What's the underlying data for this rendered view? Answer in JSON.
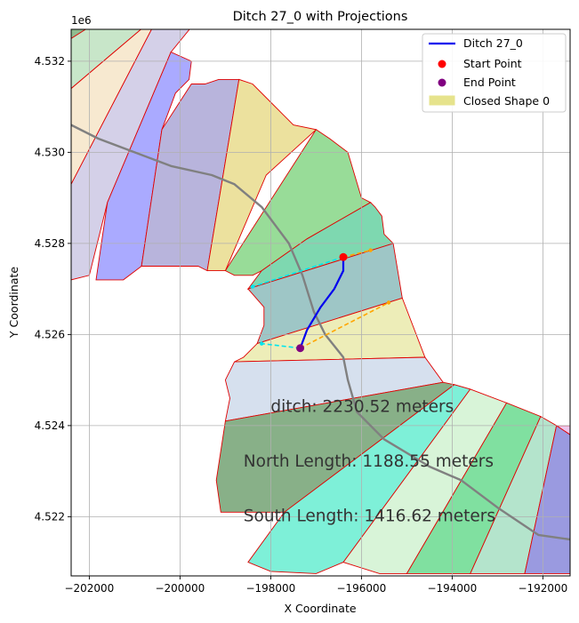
{
  "chart_data": {
    "type": "map-plot",
    "title": "Ditch 27_0 with Projections",
    "xlabel": "X Coordinate",
    "ylabel": "Y Coordinate",
    "y_offset_label": "1e6",
    "xlim": [
      -202400,
      -191400
    ],
    "ylim": [
      4520700,
      4532700
    ],
    "x_ticks": [
      -202000,
      -200000,
      -198000,
      -196000,
      -194000,
      -192000
    ],
    "x_tick_labels": [
      "−202000",
      "−200000",
      "−198000",
      "−196000",
      "−194000",
      "−192000"
    ],
    "y_ticks": [
      4522000,
      4524000,
      4526000,
      4528000,
      4530000,
      4532000
    ],
    "y_tick_labels": [
      "4.522",
      "4.524",
      "4.526",
      "4.528",
      "4.530",
      "4.532"
    ],
    "grid": true,
    "legend_position": "upper-right",
    "legend": [
      {
        "label": "Ditch 27_0",
        "kind": "line",
        "color": "#0000ee"
      },
      {
        "label": "Start Point",
        "kind": "dot",
        "color": "#ff0000"
      },
      {
        "label": "End Point",
        "kind": "dot",
        "color": "#800080"
      },
      {
        "label": "Closed Shape 0",
        "kind": "patch",
        "color": "#e6e38c"
      }
    ],
    "polygons": [
      {
        "color": "#c8e6c9",
        "points": [
          [
            -202400,
            4532750
          ],
          [
            -200800,
            4532750
          ],
          [
            -202400,
            4531400
          ]
        ]
      },
      {
        "color": "#8fbc8f",
        "points": [
          [
            -202400,
            4532750
          ],
          [
            -202000,
            4532750
          ],
          [
            -202400,
            4532500
          ]
        ]
      },
      {
        "color": "#f7e9d0",
        "points": [
          [
            -202400,
            4531400
          ],
          [
            -200800,
            4532750
          ],
          [
            -200600,
            4532750
          ],
          [
            -202400,
            4529300
          ]
        ]
      },
      {
        "color": "#d4d0e8",
        "points": [
          [
            -202400,
            4529300
          ],
          [
            -200600,
            4532750
          ],
          [
            -199750,
            4532750
          ],
          [
            -200200,
            4532200
          ],
          [
            -201600,
            4528900
          ],
          [
            -202000,
            4527300
          ],
          [
            -202400,
            4527200
          ]
        ]
      },
      {
        "color": "#aaaaff",
        "points": [
          [
            -201600,
            4528900
          ],
          [
            -200200,
            4532200
          ],
          [
            -199750,
            4532000
          ],
          [
            -199800,
            4531600
          ],
          [
            -200100,
            4531300
          ],
          [
            -200250,
            4530900
          ],
          [
            -200400,
            4530500
          ],
          [
            -200850,
            4527500
          ],
          [
            -201250,
            4527200
          ],
          [
            -201850,
            4527200
          ]
        ]
      },
      {
        "color": "#b8b4dc",
        "points": [
          [
            -200850,
            4527500
          ],
          [
            -200400,
            4530500
          ],
          [
            -199750,
            4531500
          ],
          [
            -199450,
            4531500
          ],
          [
            -199150,
            4531600
          ],
          [
            -198700,
            4531600
          ],
          [
            -199400,
            4527400
          ],
          [
            -199600,
            4527500
          ],
          [
            -200300,
            4527500
          ]
        ]
      },
      {
        "color": "#ece19e",
        "points": [
          [
            -199400,
            4527400
          ],
          [
            -198700,
            4531600
          ],
          [
            -198400,
            4531500
          ],
          [
            -198000,
            4531100
          ],
          [
            -197500,
            4530600
          ],
          [
            -197000,
            4530500
          ],
          [
            -198100,
            4529500
          ],
          [
            -199000,
            4527400
          ]
        ]
      },
      {
        "color": "#98dc98",
        "points": [
          [
            -199000,
            4527400
          ],
          [
            -197000,
            4530500
          ],
          [
            -196700,
            4530300
          ],
          [
            -196300,
            4530000
          ],
          [
            -196000,
            4529000
          ],
          [
            -195800,
            4528900
          ],
          [
            -197200,
            4528100
          ],
          [
            -198200,
            4527400
          ],
          [
            -198400,
            4527300
          ],
          [
            -198800,
            4527300
          ]
        ]
      },
      {
        "color": "#7ed8b0",
        "points": [
          [
            -198200,
            4527400
          ],
          [
            -197200,
            4528100
          ],
          [
            -195800,
            4528900
          ],
          [
            -195700,
            4528800
          ],
          [
            -195550,
            4528600
          ],
          [
            -195500,
            4528200
          ],
          [
            -195300,
            4528000
          ],
          [
            -198500,
            4527000
          ]
        ]
      },
      {
        "color": "#9ec6c6",
        "points": [
          [
            -198500,
            4527000
          ],
          [
            -195300,
            4528000
          ],
          [
            -195100,
            4526800
          ],
          [
            -198300,
            4525800
          ],
          [
            -198150,
            4526200
          ],
          [
            -198150,
            4526600
          ]
        ]
      },
      {
        "color": "#ededb8",
        "points": [
          [
            -198300,
            4525800
          ],
          [
            -195100,
            4526800
          ],
          [
            -194600,
            4525500
          ],
          [
            -198800,
            4525400
          ],
          [
            -198600,
            4525500
          ]
        ]
      },
      {
        "color": "#d6e0ee",
        "points": [
          [
            -198800,
            4525400
          ],
          [
            -194600,
            4525500
          ],
          [
            -194200,
            4524950
          ],
          [
            -199000,
            4524100
          ],
          [
            -198900,
            4524600
          ],
          [
            -199000,
            4525000
          ]
        ]
      },
      {
        "color": "#88b088",
        "points": [
          [
            -199000,
            4524100
          ],
          [
            -194200,
            4524950
          ],
          [
            -193950,
            4524900
          ],
          [
            -197700,
            4522100
          ],
          [
            -199100,
            4522100
          ],
          [
            -199200,
            4522800
          ]
        ]
      },
      {
        "color": "#7ef0d8",
        "points": [
          [
            -197700,
            4522100
          ],
          [
            -193950,
            4524900
          ],
          [
            -193600,
            4524800
          ],
          [
            -196400,
            4521000
          ],
          [
            -197000,
            4520750
          ],
          [
            -198000,
            4520800
          ],
          [
            -198500,
            4521000
          ]
        ]
      },
      {
        "color": "#d8f4d8",
        "points": [
          [
            -196400,
            4521000
          ],
          [
            -193600,
            4524800
          ],
          [
            -192800,
            4524500
          ],
          [
            -195000,
            4520750
          ],
          [
            -195600,
            4520750
          ]
        ]
      },
      {
        "color": "#80e0a0",
        "points": [
          [
            -195000,
            4520750
          ],
          [
            -192800,
            4524500
          ],
          [
            -192050,
            4524200
          ],
          [
            -193600,
            4520750
          ]
        ]
      },
      {
        "color": "#b4e4cc",
        "points": [
          [
            -193600,
            4520750
          ],
          [
            -192050,
            4524200
          ],
          [
            -191700,
            4524000
          ],
          [
            -192400,
            4520750
          ]
        ]
      },
      {
        "color": "#9a9ae0",
        "points": [
          [
            -192400,
            4520750
          ],
          [
            -191700,
            4524000
          ],
          [
            -191400,
            4523800
          ],
          [
            -191400,
            4520750
          ]
        ]
      },
      {
        "color": "#ecc6ec",
        "points": [
          [
            -191700,
            4524000
          ],
          [
            -191400,
            4524000
          ],
          [
            -191400,
            4523800
          ]
        ]
      }
    ],
    "centerline": [
      [
        -202400,
        4530600
      ],
      [
        -201800,
        4530300
      ],
      [
        -201000,
        4530000
      ],
      [
        -200200,
        4529700
      ],
      [
        -199300,
        4529500
      ],
      [
        -198800,
        4529300
      ],
      [
        -198200,
        4528800
      ],
      [
        -197600,
        4528000
      ],
      [
        -197300,
        4527300
      ],
      [
        -197050,
        4526500
      ],
      [
        -196800,
        4526000
      ],
      [
        -196400,
        4525500
      ],
      [
        -196300,
        4525000
      ],
      [
        -196100,
        4524300
      ],
      [
        -195500,
        4523700
      ],
      [
        -194500,
        4523100
      ],
      [
        -193800,
        4522800
      ],
      [
        -193000,
        4522200
      ],
      [
        -192100,
        4521600
      ],
      [
        -191400,
        4521500
      ]
    ],
    "ditch": [
      [
        -196400,
        4527700
      ],
      [
        -196400,
        4527400
      ],
      [
        -196600,
        4527000
      ],
      [
        -196900,
        4526600
      ],
      [
        -197200,
        4526100
      ],
      [
        -197350,
        4525700
      ]
    ],
    "start_point": [
      -196400,
      4527700
    ],
    "end_point": [
      -197350,
      4525700
    ],
    "projections": [
      {
        "color": "#00e5ee",
        "from": [
          -196400,
          4527700
        ],
        "to": [
          -198400,
          4527050
        ]
      },
      {
        "color": "#ffa500",
        "from": [
          -196400,
          4527700
        ],
        "to": [
          -195800,
          4527850
        ]
      },
      {
        "color": "#00e5ee",
        "from": [
          -197350,
          4525700
        ],
        "to": [
          -198200,
          4525800
        ]
      },
      {
        "color": "#ffa500",
        "from": [
          -197350,
          4525700
        ],
        "to": [
          -195400,
          4526700
        ]
      }
    ],
    "annotations": [
      {
        "text": "ditch: 2230.52 meters",
        "x": -198000,
        "y": 4524300
      },
      {
        "text": "North Length: 1188.55 meters",
        "x": -198600,
        "y": 4523100
      },
      {
        "text": "South Length: 1416.62 meters",
        "x": -198600,
        "y": 4521900
      }
    ]
  }
}
